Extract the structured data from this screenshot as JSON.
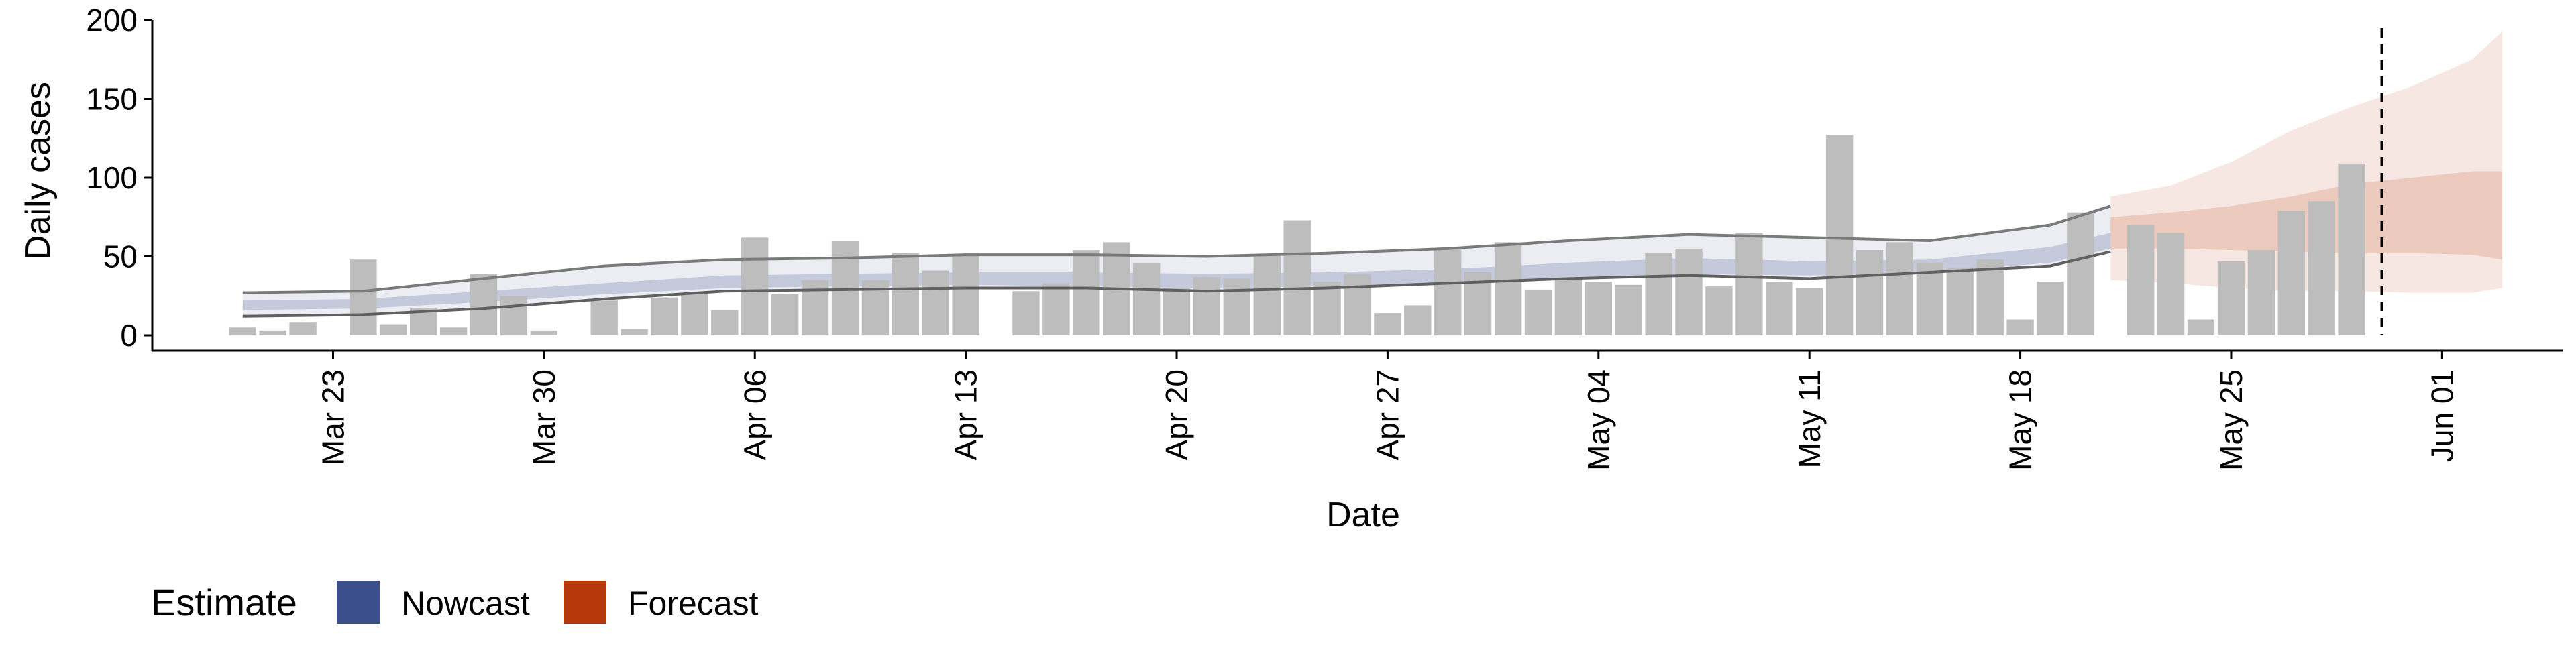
{
  "chart_data": {
    "type": "bar",
    "title": "",
    "xlabel": "Date",
    "ylabel": "Daily cases",
    "ylim": [
      0,
      200
    ],
    "y_ticks": [
      0,
      50,
      100,
      150,
      200
    ],
    "x_ticks": [
      "Mar 23",
      "Mar 30",
      "Apr 06",
      "Apr 13",
      "Apr 20",
      "Apr 27",
      "May 04",
      "May 11",
      "May 18",
      "May 25",
      "Jun 01"
    ],
    "x_tick_dates": [
      "2020-03-23",
      "2020-03-30",
      "2020-04-06",
      "2020-04-13",
      "2020-04-20",
      "2020-04-27",
      "2020-05-04",
      "2020-05-11",
      "2020-05-18",
      "2020-05-25",
      "2020-06-01"
    ],
    "x_range": [
      "2020-03-17",
      "2020-06-05"
    ],
    "vline_date": "2020-05-30",
    "grid": false,
    "legend": {
      "title": "Estimate",
      "position": "bottom-left",
      "items": [
        {
          "label": "Nowcast",
          "color": "#3b4f8c"
        },
        {
          "label": "Forecast",
          "color": "#b5390a"
        }
      ]
    },
    "colors": {
      "bars": "#bdbdbd",
      "nowcast": "#3b4f8c",
      "forecast": "#c0461c",
      "axis": "#000000",
      "band_line": "#7a7a7a",
      "vline": "#000000"
    },
    "bars": {
      "dates": [
        "2020-03-20",
        "2020-03-21",
        "2020-03-22",
        "2020-03-23",
        "2020-03-24",
        "2020-03-25",
        "2020-03-26",
        "2020-03-27",
        "2020-03-28",
        "2020-03-29",
        "2020-03-30",
        "2020-03-31",
        "2020-04-01",
        "2020-04-02",
        "2020-04-03",
        "2020-04-04",
        "2020-04-05",
        "2020-04-06",
        "2020-04-07",
        "2020-04-08",
        "2020-04-09",
        "2020-04-10",
        "2020-04-11",
        "2020-04-12",
        "2020-04-13",
        "2020-04-14",
        "2020-04-15",
        "2020-04-16",
        "2020-04-17",
        "2020-04-18",
        "2020-04-19",
        "2020-04-20",
        "2020-04-21",
        "2020-04-22",
        "2020-04-23",
        "2020-04-24",
        "2020-04-25",
        "2020-04-26",
        "2020-04-27",
        "2020-04-28",
        "2020-04-29",
        "2020-04-30",
        "2020-05-01",
        "2020-05-02",
        "2020-05-03",
        "2020-05-04",
        "2020-05-05",
        "2020-05-06",
        "2020-05-07",
        "2020-05-08",
        "2020-05-09",
        "2020-05-10",
        "2020-05-11",
        "2020-05-12",
        "2020-05-13",
        "2020-05-14",
        "2020-05-15",
        "2020-05-16",
        "2020-05-17",
        "2020-05-18",
        "2020-05-19",
        "2020-05-20",
        "2020-05-21",
        "2020-05-22",
        "2020-05-23",
        "2020-05-24",
        "2020-05-25",
        "2020-05-26",
        "2020-05-27",
        "2020-05-28",
        "2020-05-29",
        "2020-05-30"
      ],
      "values": [
        5,
        3,
        8,
        0,
        48,
        7,
        17,
        5,
        39,
        25,
        3,
        0,
        22,
        4,
        24,
        27,
        16,
        62,
        26,
        35,
        60,
        35,
        52,
        41,
        51,
        0,
        28,
        33,
        54,
        59,
        46,
        30,
        37,
        36,
        51,
        73,
        34,
        39,
        14,
        19,
        55,
        40,
        59,
        29,
        36,
        34,
        32,
        52,
        55,
        31,
        65,
        34,
        30,
        127,
        54,
        59,
        46,
        43,
        48,
        10,
        34,
        78,
        0,
        70,
        65,
        10,
        47,
        54,
        79,
        85,
        109,
        0
      ]
    },
    "nowcast": {
      "dates": [
        "2020-03-20",
        "2020-03-24",
        "2020-03-28",
        "2020-04-01",
        "2020-04-05",
        "2020-04-09",
        "2020-04-13",
        "2020-04-17",
        "2020-04-21",
        "2020-04-25",
        "2020-04-29",
        "2020-05-03",
        "2020-05-07",
        "2020-05-11",
        "2020-05-15",
        "2020-05-19",
        "2020-05-21"
      ],
      "upper90": [
        27,
        28,
        36,
        44,
        48,
        49,
        51,
        51,
        50,
        52,
        55,
        60,
        64,
        62,
        60,
        70,
        82
      ],
      "upper50": [
        22,
        23,
        28,
        33,
        38,
        39,
        40,
        40,
        39,
        40,
        42,
        46,
        49,
        47,
        48,
        56,
        65
      ],
      "lower50": [
        16,
        17,
        21,
        26,
        30,
        31,
        32,
        31,
        30,
        31,
        33,
        37,
        39,
        38,
        40,
        46,
        55
      ],
      "lower90": [
        12,
        13,
        17,
        23,
        28,
        29,
        30,
        30,
        28,
        30,
        33,
        36,
        38,
        36,
        40,
        44,
        53
      ]
    },
    "forecast": {
      "dates": [
        "2020-05-21",
        "2020-05-23",
        "2020-05-25",
        "2020-05-27",
        "2020-05-29",
        "2020-05-31",
        "2020-06-02",
        "2020-06-03"
      ],
      "upper90": [
        88,
        95,
        110,
        130,
        145,
        158,
        175,
        193
      ],
      "upper50": [
        75,
        78,
        82,
        88,
        96,
        100,
        104,
        104
      ],
      "lower50": [
        55,
        55,
        54,
        53,
        52,
        52,
        51,
        48
      ],
      "lower90": [
        35,
        33,
        30,
        28,
        28,
        27,
        27,
        30
      ]
    }
  }
}
